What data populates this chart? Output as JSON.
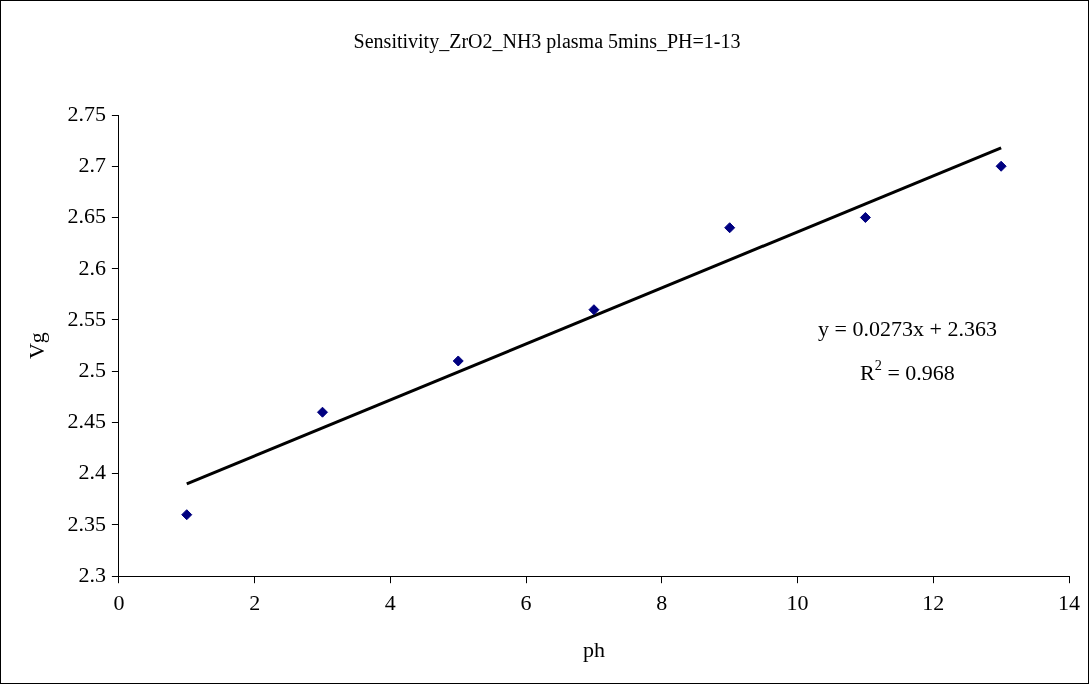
{
  "chart_data": {
    "type": "scatter",
    "title": "Sensitivity_ZrO2_NH3 plasma 5mins_PH=1-13",
    "xlabel": "ph",
    "ylabel": "Vg",
    "series": [
      {
        "type": "scatter",
        "color": "#000080",
        "x": [
          1,
          3,
          5,
          7,
          9,
          11,
          13
        ],
        "values": [
          2.36,
          2.46,
          2.51,
          2.56,
          2.64,
          2.65,
          2.7
        ],
        "marker": "diamond"
      },
      {
        "type": "line",
        "color": "#000000",
        "x": [
          1,
          13
        ],
        "values": [
          2.39,
          2.718
        ],
        "marker": "none",
        "line_style": "solid"
      }
    ],
    "annotations": [
      "y = 0.0273x + 2.363",
      "R$^{2}$ = 0.968"
    ],
    "xlim": [
      0,
      14
    ],
    "xticks": [
      0,
      2,
      4,
      6,
      8,
      10,
      12,
      14
    ],
    "ylim": [
      2.3,
      2.75
    ],
    "yticks": [
      2.3,
      2.35,
      2.4,
      2.45,
      2.5,
      2.55,
      2.6,
      2.65,
      2.7,
      2.75
    ],
    "grid": false,
    "legend": false
  }
}
